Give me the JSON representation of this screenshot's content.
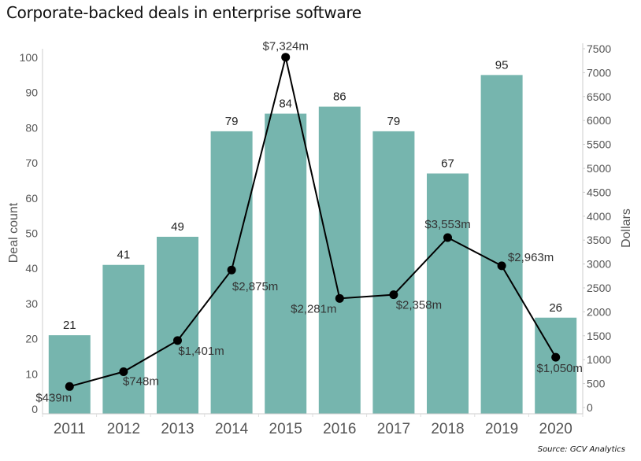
{
  "chart_data": {
    "type": "bar",
    "title": "Corporate-backed deals in enterprise software",
    "source": "Source: GCV Analytics",
    "categories": [
      "2011",
      "2012",
      "2013",
      "2014",
      "2015",
      "2016",
      "2017",
      "2018",
      "2019",
      "2020"
    ],
    "series": [
      {
        "name": "Deal count",
        "type": "bar",
        "axis": "left",
        "color": "#76b5ae",
        "values": [
          21,
          41,
          49,
          79,
          84,
          86,
          79,
          67,
          95,
          26
        ],
        "labels": [
          "21",
          "41",
          "49",
          "79",
          "84",
          "86",
          "79",
          "67",
          "95",
          "26"
        ]
      },
      {
        "name": "Dollars",
        "type": "line",
        "axis": "right",
        "color": "#000000",
        "values": [
          439,
          748,
          1401,
          2875,
          7324,
          2281,
          2358,
          3553,
          2963,
          1050
        ],
        "labels": [
          "$439m",
          "$748m",
          "$1,401m",
          "$2,875m",
          "$7,324m",
          "$2,281m",
          "$2,358m",
          "$3,553m",
          "$2,963m",
          "$1,050m"
        ]
      }
    ],
    "ylabel": "Deal count",
    "ylabel_right": "Dollars",
    "ylim": [
      0,
      100
    ],
    "ylim_right": [
      0,
      7500
    ],
    "yticks": [
      0,
      10,
      20,
      30,
      40,
      50,
      60,
      70,
      80,
      90,
      100
    ],
    "yticks_right": [
      0,
      500,
      1000,
      1500,
      2000,
      2500,
      3000,
      3500,
      4000,
      4500,
      5000,
      5500,
      6000,
      6500,
      7000,
      7500
    ],
    "grid": false,
    "legend": "none"
  }
}
